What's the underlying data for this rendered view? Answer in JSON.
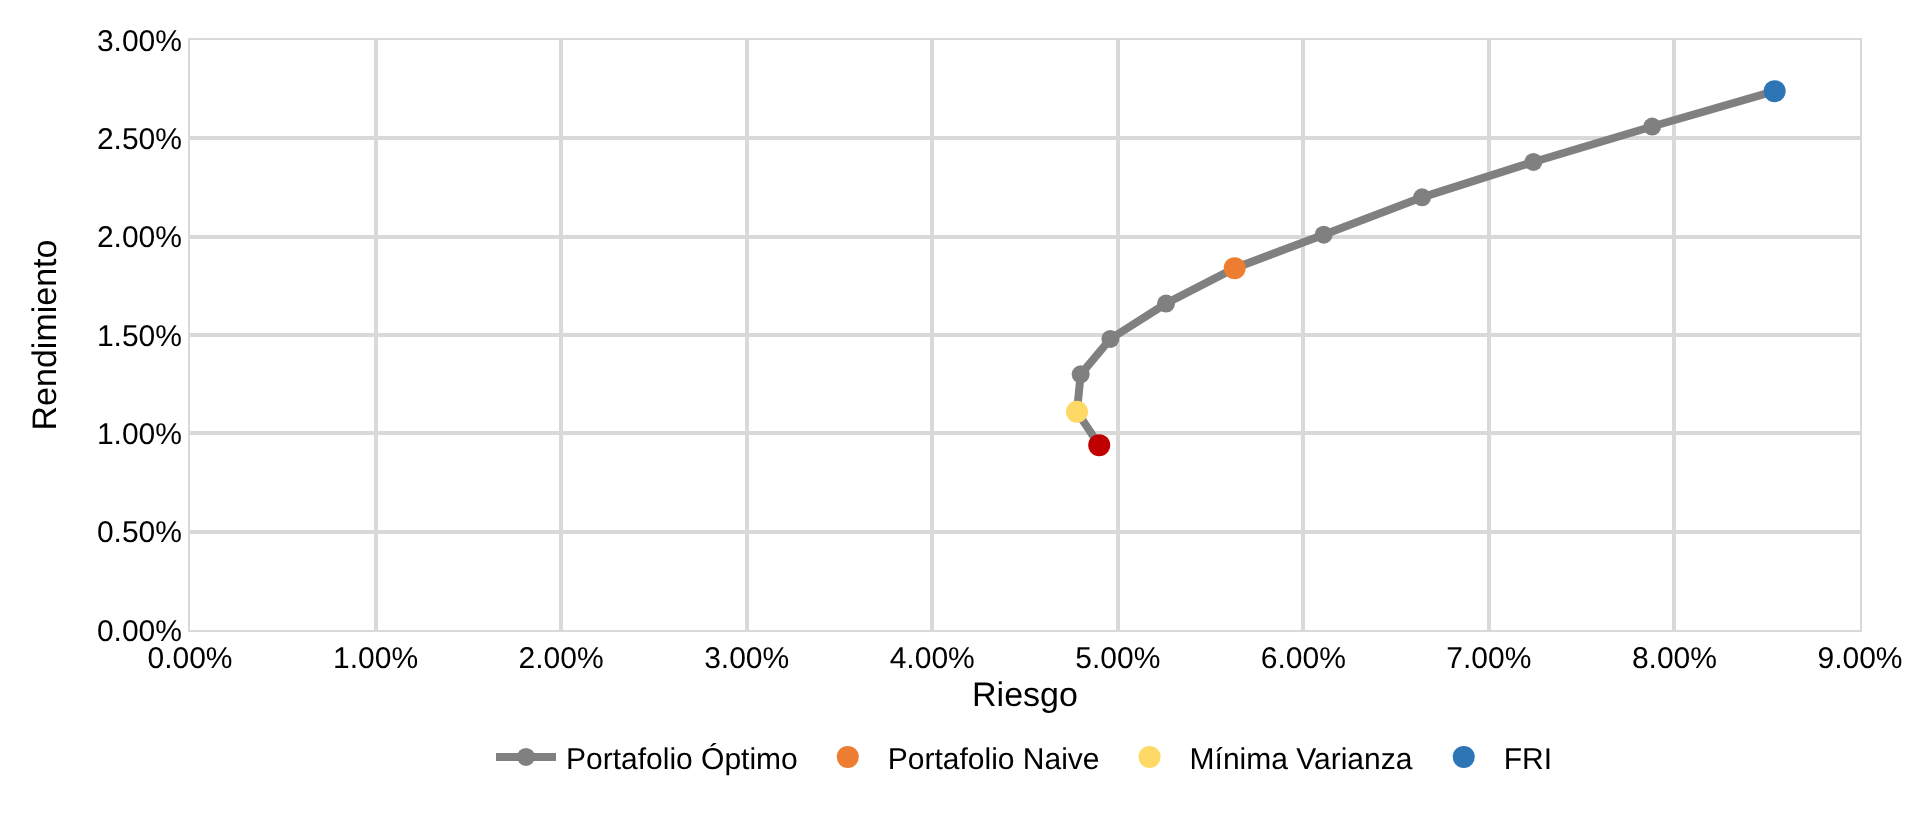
{
  "chart_data": {
    "type": "scatter",
    "xlabel": "Riesgo",
    "ylabel": "Rendimiento",
    "series": [
      {
        "name": "Portafolio Óptimo",
        "type": "line",
        "color": "#808080",
        "x": [
          4.9,
          4.78,
          4.8,
          4.96,
          5.26,
          5.63,
          6.11,
          6.64,
          7.24,
          7.88,
          8.54
        ],
        "values": [
          0.94,
          1.11,
          1.3,
          1.48,
          1.66,
          1.84,
          2.01,
          2.2,
          2.38,
          2.56,
          2.74
        ]
      },
      {
        "name": "Portafolio Naive",
        "color": "#ed7d31",
        "x": [
          5.63
        ],
        "values": [
          1.84
        ]
      },
      {
        "name": "Mínima Varianza",
        "color": "#ffd966",
        "x": [
          4.78
        ],
        "values": [
          1.11
        ]
      },
      {
        "name": "FRI",
        "color": "#2e75b6",
        "x": [
          8.54
        ],
        "values": [
          2.74
        ]
      },
      {
        "color": "#c00000",
        "x": [
          4.9
        ],
        "values": [
          0.94
        ]
      }
    ],
    "xlim": [
      0,
      9
    ],
    "xticks": [
      {
        "value": 0,
        "label": "0.00%"
      },
      {
        "value": 1,
        "label": "1.00%"
      },
      {
        "value": 2,
        "label": "2.00%"
      },
      {
        "value": 3,
        "label": "3.00%"
      },
      {
        "value": 4,
        "label": "4.00%"
      },
      {
        "value": 5,
        "label": "5.00%"
      },
      {
        "value": 6,
        "label": "6.00%"
      },
      {
        "value": 7,
        "label": "7.00%"
      },
      {
        "value": 8,
        "label": "8.00%"
      },
      {
        "value": 9,
        "label": "9.00%"
      }
    ],
    "ylim": [
      0,
      3
    ],
    "yticks": [
      {
        "value": 0,
        "label": "0.00%"
      },
      {
        "value": 0.5,
        "label": "0.50%"
      },
      {
        "value": 1,
        "label": "1.00%"
      },
      {
        "value": 1.5,
        "label": "1.50%"
      },
      {
        "value": 2,
        "label": "2.00%"
      },
      {
        "value": 2.5,
        "label": "2.50%"
      },
      {
        "value": 3,
        "label": "3.00%"
      }
    ],
    "grid": true,
    "legend": "bottom",
    "marker": "circle"
  }
}
